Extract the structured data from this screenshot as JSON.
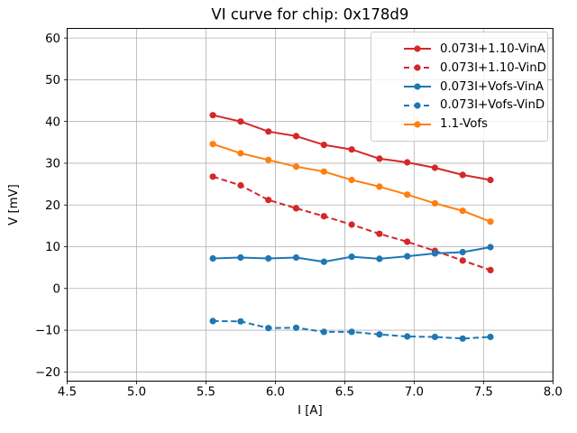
{
  "figure": {
    "background": "#ffffff",
    "grid_color": "#b0b0b0",
    "spine_color": "#000000",
    "text_color": "#000000",
    "legend_border_color": "#cccccc"
  },
  "chart_data": {
    "type": "line",
    "title": "VI curve for chip: 0x178d9",
    "xlabel": "I [A]",
    "ylabel": "V [mV]",
    "xlim": [
      4.5,
      8.0
    ],
    "ylim": [
      -22.2,
      62.3
    ],
    "xticks": [
      4.5,
      5.0,
      5.5,
      6.0,
      6.5,
      7.0,
      7.5,
      8.0
    ],
    "yticks": [
      -20,
      -10,
      0,
      10,
      20,
      30,
      40,
      50,
      60
    ],
    "grid": true,
    "legend_position": "upper right",
    "x": [
      5.55,
      5.75,
      5.95,
      6.15,
      6.35,
      6.55,
      6.75,
      6.95,
      7.15,
      7.35,
      7.55
    ],
    "series": [
      {
        "name": "0.073I+1.10-VinA",
        "color": "#d62728",
        "linestyle": "solid",
        "marker": "circle",
        "values": [
          41.5,
          40.0,
          37.6,
          36.5,
          34.4,
          33.3,
          31.1,
          30.2,
          28.9,
          27.2,
          26.0
        ]
      },
      {
        "name": "0.073I+1.10-VinD",
        "color": "#d62728",
        "linestyle": "dashed",
        "marker": "circle",
        "values": [
          26.8,
          24.7,
          21.2,
          19.2,
          17.3,
          15.3,
          13.1,
          11.2,
          9.0,
          6.7,
          4.4
        ]
      },
      {
        "name": "0.073I+Vofs-VinA",
        "color": "#1f77b4",
        "linestyle": "solid",
        "marker": "circle",
        "values": [
          7.2,
          7.4,
          7.2,
          7.4,
          6.4,
          7.6,
          7.1,
          7.7,
          8.4,
          8.7,
          9.9
        ]
      },
      {
        "name": "0.073I+Vofs-VinD",
        "color": "#1f77b4",
        "linestyle": "dashed",
        "marker": "circle",
        "values": [
          -7.8,
          -7.9,
          -9.5,
          -9.4,
          -10.4,
          -10.4,
          -11.0,
          -11.5,
          -11.6,
          -12.0,
          -11.6
        ]
      },
      {
        "name": "1.1-Vofs",
        "color": "#ff7f0e",
        "linestyle": "solid",
        "marker": "circle",
        "values": [
          34.6,
          32.4,
          30.8,
          29.2,
          28.0,
          26.0,
          24.4,
          22.5,
          20.4,
          18.6,
          16.0
        ]
      }
    ]
  }
}
